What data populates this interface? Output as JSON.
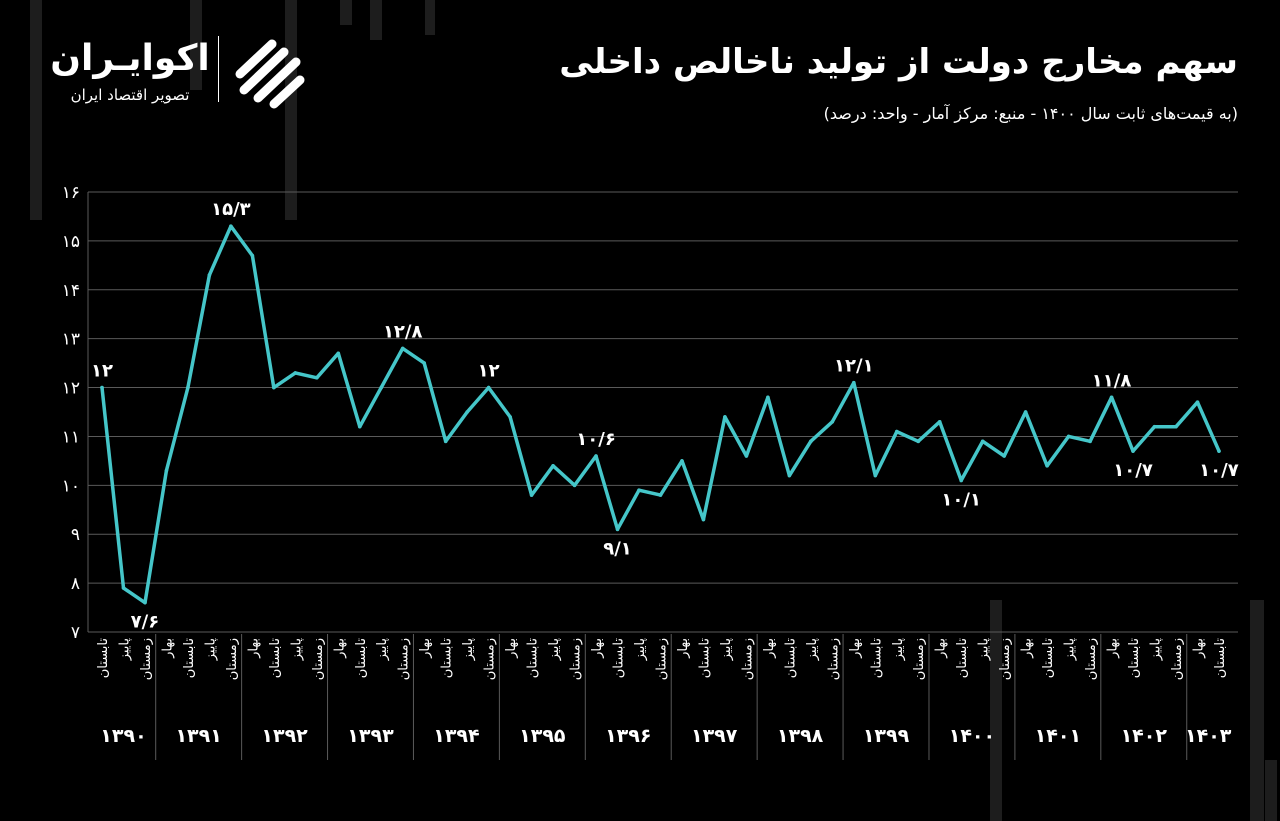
{
  "header": {
    "title": "سهم مخارج دولت از تولید ناخالص داخلی",
    "subtitle": "(به قیمت‌های ثابت سال ۱۴۰۰ - منبع: مرکز آمار - واحد: درصد)"
  },
  "logo": {
    "name": "اکوایـران",
    "tagline": "تصویر اقتصاد ایران",
    "icon": "eghtesad-iran-logo-icon"
  },
  "colors": {
    "background": "#000000",
    "line": "#45c6c9",
    "text": "#ffffff",
    "grid": "#5a5a5a"
  },
  "chart_data": {
    "type": "line",
    "title": "سهم مخارج دولت از تولید ناخالص داخلی",
    "ylim": [
      7,
      16
    ],
    "yticks": [
      "۷",
      "۸",
      "۹",
      "۱۰",
      "۱۱",
      "۱۲",
      "۱۳",
      "۱۴",
      "۱۵",
      "۱۶"
    ],
    "grid": true,
    "categories": [
      "تابستان",
      "پاییز",
      "زمستان",
      "بهار",
      "تابستان",
      "پاییز",
      "زمستان",
      "بهار",
      "تابستان",
      "پاییز",
      "زمستان",
      "بهار",
      "تابستان",
      "پاییز",
      "زمستان",
      "بهار",
      "تابستان",
      "پاییز",
      "زمستان",
      "بهار",
      "تابستان",
      "پاییز",
      "زمستان",
      "بهار",
      "تابستان",
      "پاییز",
      "زمستان",
      "بهار",
      "تابستان",
      "پاییز",
      "زمستان",
      "بهار",
      "تابستان",
      "پاییز",
      "زمستان",
      "بهار",
      "تابستان",
      "پاییز",
      "زمستان",
      "بهار",
      "تابستان",
      "پاییز",
      "زمستان",
      "بهار",
      "تابستان",
      "پاییز",
      "زمستان",
      "بهار",
      "تابستان",
      "پاییز",
      "زمستان",
      "بهار",
      "تابستان"
    ],
    "years": [
      {
        "label": "۱۳۹۰",
        "count": 3
      },
      {
        "label": "۱۳۹۱",
        "count": 4
      },
      {
        "label": "۱۳۹۲",
        "count": 4
      },
      {
        "label": "۱۳۹۳",
        "count": 4
      },
      {
        "label": "۱۳۹۴",
        "count": 4
      },
      {
        "label": "۱۳۹۵",
        "count": 4
      },
      {
        "label": "۱۳۹۶",
        "count": 4
      },
      {
        "label": "۱۳۹۷",
        "count": 4
      },
      {
        "label": "۱۳۹۸",
        "count": 4
      },
      {
        "label": "۱۳۹۹",
        "count": 4
      },
      {
        "label": "۱۴۰۰",
        "count": 4
      },
      {
        "label": "۱۴۰۱",
        "count": 4
      },
      {
        "label": "۱۴۰۲",
        "count": 4
      },
      {
        "label": "۱۴۰۳",
        "count": 2
      }
    ],
    "series": [
      {
        "values": [
          12.0,
          7.9,
          7.6,
          10.3,
          12.0,
          14.3,
          15.3,
          14.7,
          12.0,
          12.3,
          12.2,
          12.7,
          11.2,
          12.0,
          12.8,
          12.5,
          10.9,
          11.5,
          12.0,
          11.4,
          9.8,
          10.4,
          10.0,
          10.6,
          9.1,
          9.9,
          9.8,
          10.5,
          9.3,
          11.4,
          10.6,
          11.8,
          10.2,
          10.9,
          11.3,
          12.1,
          10.2,
          11.1,
          10.9,
          11.3,
          10.1,
          10.9,
          10.6,
          11.5,
          10.4,
          11.0,
          10.9,
          11.8,
          10.7,
          11.2,
          11.2,
          11.7,
          10.7
        ]
      }
    ],
    "annotations": [
      {
        "index": 0,
        "text": "۱۲",
        "pos": "above"
      },
      {
        "index": 2,
        "text": "۷/۶",
        "pos": "below"
      },
      {
        "index": 6,
        "text": "۱۵/۳",
        "pos": "above"
      },
      {
        "index": 14,
        "text": "۱۲/۸",
        "pos": "above"
      },
      {
        "index": 18,
        "text": "۱۲",
        "pos": "above"
      },
      {
        "index": 23,
        "text": "۱۰/۶",
        "pos": "above"
      },
      {
        "index": 24,
        "text": "۹/۱",
        "pos": "below"
      },
      {
        "index": 35,
        "text": "۱۲/۱",
        "pos": "above"
      },
      {
        "index": 40,
        "text": "۱۰/۱",
        "pos": "below"
      },
      {
        "index": 47,
        "text": "۱۱/۸",
        "pos": "above"
      },
      {
        "index": 48,
        "text": "۱۰/۷",
        "pos": "below"
      },
      {
        "index": 52,
        "text": "۱۰/۷",
        "pos": "below"
      }
    ]
  }
}
